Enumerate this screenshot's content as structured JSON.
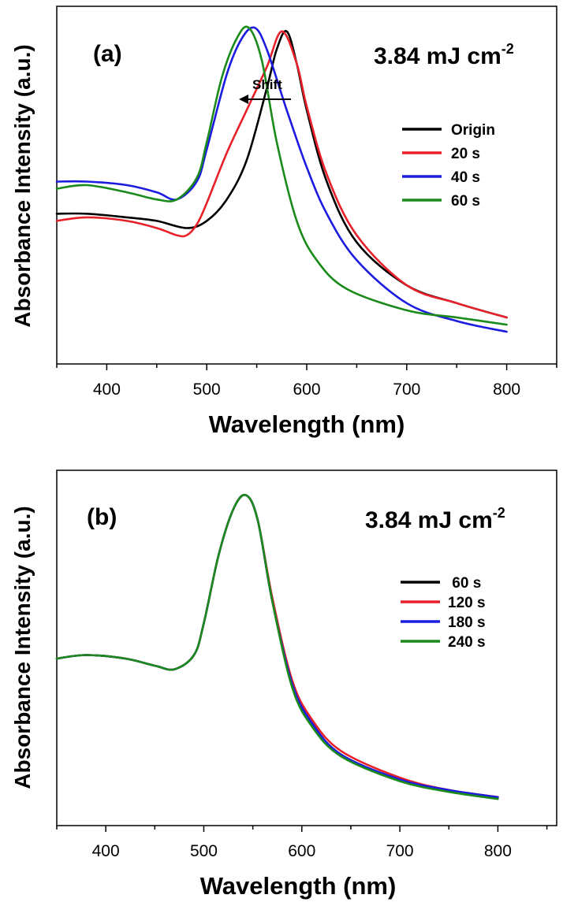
{
  "chart_data": [
    {
      "type": "line",
      "panel_label": "(a)",
      "annotation": "3.84 mJ cm",
      "annotation_superscript": "-2",
      "shift_label": "Shift",
      "xlabel": "Wavelength (nm)",
      "ylabel": "Absorbance Intensity (a.u.)",
      "xlim": [
        350,
        850
      ],
      "ylim": [
        0,
        1.0
      ],
      "xticks": [
        400,
        500,
        600,
        700,
        800
      ],
      "y_ticks_labeled": false,
      "grid": false,
      "legend_position": "top-right",
      "series": [
        {
          "name": "Origin",
          "color": "#000000",
          "x": [
            350,
            380,
            420,
            450,
            480,
            500,
            520,
            540,
            560,
            570,
            580,
            590,
            600,
            620,
            650,
            700,
            750,
            800
          ],
          "y": [
            0.42,
            0.42,
            0.41,
            0.4,
            0.38,
            0.4,
            0.46,
            0.57,
            0.77,
            0.88,
            0.93,
            0.84,
            0.71,
            0.51,
            0.34,
            0.22,
            0.17,
            0.13
          ]
        },
        {
          "name": "20 s",
          "color": "#e8202a",
          "x": [
            350,
            380,
            420,
            450,
            470,
            480,
            490,
            500,
            520,
            540,
            560,
            575,
            590,
            600,
            620,
            650,
            700,
            750,
            800
          ],
          "y": [
            0.4,
            0.41,
            0.4,
            0.38,
            0.36,
            0.36,
            0.39,
            0.45,
            0.59,
            0.71,
            0.83,
            0.93,
            0.84,
            0.72,
            0.53,
            0.36,
            0.22,
            0.17,
            0.13
          ]
        },
        {
          "name": "40 s",
          "color": "#1c1ce0",
          "x": [
            350,
            380,
            420,
            450,
            470,
            490,
            500,
            520,
            535,
            548,
            560,
            580,
            600,
            620,
            650,
            700,
            750,
            800
          ],
          "y": [
            0.51,
            0.51,
            0.5,
            0.48,
            0.46,
            0.51,
            0.6,
            0.81,
            0.91,
            0.94,
            0.88,
            0.71,
            0.55,
            0.42,
            0.29,
            0.17,
            0.12,
            0.09
          ]
        },
        {
          "name": "60 s",
          "color": "#1a8a1a",
          "x": [
            350,
            380,
            420,
            450,
            470,
            490,
            500,
            515,
            530,
            542,
            555,
            570,
            590,
            610,
            640,
            700,
            750,
            800
          ],
          "y": [
            0.49,
            0.5,
            0.48,
            0.46,
            0.46,
            0.52,
            0.62,
            0.8,
            0.91,
            0.94,
            0.85,
            0.62,
            0.4,
            0.29,
            0.21,
            0.15,
            0.13,
            0.11
          ]
        }
      ]
    },
    {
      "type": "line",
      "panel_label": "(b)",
      "annotation": "3.84 mJ cm",
      "annotation_superscript": "-2",
      "xlabel": "Wavelength (nm)",
      "ylabel": "Absorbance Intensity (a.u.)",
      "xlim": [
        350,
        860
      ],
      "ylim": [
        0,
        1.0
      ],
      "xticks": [
        400,
        500,
        600,
        700,
        800
      ],
      "y_ticks_labeled": false,
      "grid": false,
      "legend_position": "top-right",
      "series": [
        {
          "name": " 60 s",
          "color": "#000000",
          "x": [
            350,
            380,
            420,
            450,
            470,
            490,
            500,
            515,
            530,
            543,
            555,
            570,
            590,
            610,
            640,
            700,
            750,
            800
          ],
          "y": [
            0.47,
            0.48,
            0.47,
            0.45,
            0.44,
            0.48,
            0.57,
            0.76,
            0.89,
            0.93,
            0.86,
            0.63,
            0.4,
            0.29,
            0.2,
            0.13,
            0.1,
            0.08
          ]
        },
        {
          "name": "120 s",
          "color": "#e8202a",
          "x": [
            350,
            380,
            420,
            450,
            470,
            490,
            500,
            515,
            530,
            543,
            555,
            570,
            590,
            610,
            640,
            700,
            750,
            800
          ],
          "y": [
            0.47,
            0.48,
            0.47,
            0.45,
            0.44,
            0.48,
            0.57,
            0.76,
            0.89,
            0.93,
            0.86,
            0.64,
            0.41,
            0.3,
            0.21,
            0.135,
            0.1,
            0.08
          ]
        },
        {
          "name": "180 s",
          "color": "#1c1ce0",
          "x": [
            350,
            380,
            420,
            450,
            470,
            490,
            500,
            515,
            530,
            543,
            555,
            570,
            590,
            610,
            640,
            700,
            750,
            800
          ],
          "y": [
            0.47,
            0.48,
            0.47,
            0.45,
            0.44,
            0.48,
            0.57,
            0.76,
            0.89,
            0.93,
            0.86,
            0.63,
            0.4,
            0.29,
            0.2,
            0.13,
            0.1,
            0.08
          ]
        },
        {
          "name": "240 s",
          "color": "#1a8a1a",
          "x": [
            350,
            380,
            420,
            450,
            470,
            490,
            500,
            515,
            530,
            543,
            555,
            570,
            590,
            610,
            640,
            700,
            750,
            800
          ],
          "y": [
            0.47,
            0.48,
            0.47,
            0.45,
            0.44,
            0.48,
            0.57,
            0.76,
            0.89,
            0.93,
            0.86,
            0.63,
            0.39,
            0.28,
            0.195,
            0.125,
            0.095,
            0.075
          ]
        }
      ]
    }
  ]
}
